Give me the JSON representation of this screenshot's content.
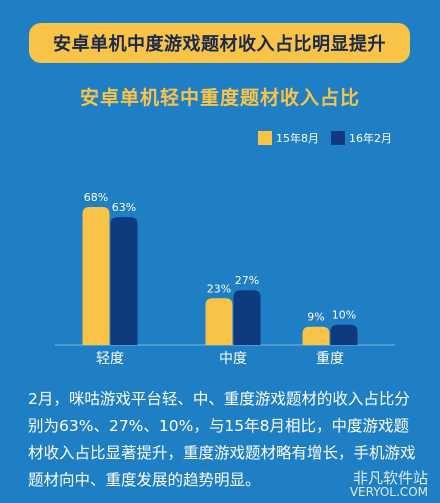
{
  "banner": {
    "text": "安卓单机中度游戏题材收入占比明显提升"
  },
  "chart_data": {
    "type": "bar",
    "title": "安卓单机轻中重度题材收入占比",
    "categories": [
      "轻度",
      "中度",
      "重度"
    ],
    "series": [
      {
        "name": "15年8月",
        "values": [
          68,
          23,
          9
        ],
        "labels": [
          "68%",
          "23%",
          "9%"
        ],
        "color": "#f8c347"
      },
      {
        "name": "16年2月",
        "values": [
          63,
          27,
          10
        ],
        "labels": [
          "63%",
          "27%",
          "10%"
        ],
        "color": "#0e3a7e"
      }
    ],
    "ylim": [
      0,
      70
    ],
    "grid": false,
    "legend": "top-right"
  },
  "description": "2月，咪咕游戏平台轻、中、重度游戏题材的收入占比分别为63%、27%、10%，与15年8月相比，中度游戏题材收入占比显著提升，重度游戏题材略有增长，手机游戏题材向中、重度发展的趋势明显。",
  "watermark": {
    "cn": "非凡软件站",
    "en": "VERYOL.COM"
  }
}
